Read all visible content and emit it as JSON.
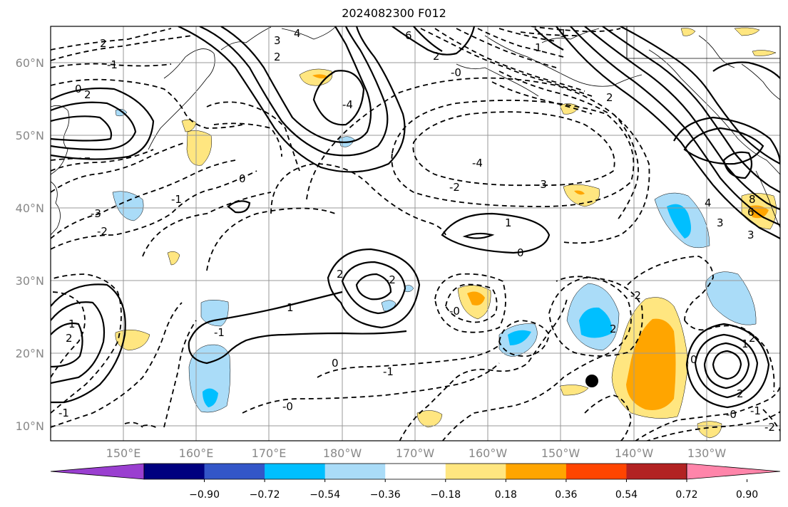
{
  "title": "2024082300 F012",
  "lat_labels": [
    "60°N",
    "50°N",
    "40°N",
    "30°N",
    "20°N",
    "10°N"
  ],
  "lon_labels": [
    "150°E",
    "160°E",
    "170°E",
    "180°W",
    "170°W",
    "160°W",
    "150°W",
    "140°W",
    "130°W"
  ],
  "colorbar": {
    "colors": [
      "#9a3fd0",
      "#00007f",
      "#3356c8",
      "#00bfff",
      "#aadcf8",
      "#ffffff",
      "#ffe680",
      "#ffa500",
      "#ff4500",
      "#b22222",
      "#ff85aa"
    ],
    "ticks": [
      "−0.90",
      "−0.72",
      "−0.54",
      "−0.36",
      "−0.18",
      "0.18",
      "0.36",
      "0.54",
      "0.72",
      "0.90"
    ]
  },
  "contour_labels": [
    "2",
    "-1",
    "2",
    "3",
    "4",
    "6",
    "1",
    "2",
    "-0",
    "2",
    "-4",
    "1",
    "0",
    "-4",
    "-3",
    "-2",
    "0",
    "-1",
    "-3",
    "-2",
    "1",
    "2",
    "0",
    "-2",
    "-1",
    "-0",
    "-1",
    "1",
    "2",
    "0",
    "-0",
    "1",
    "-1",
    "-2",
    "4",
    "3",
    "6",
    "8",
    "3",
    "2",
    "1",
    "0",
    "2",
    "-0",
    "-1",
    "-2",
    "2",
    "2"
  ],
  "marker": "storm-position-dot"
}
